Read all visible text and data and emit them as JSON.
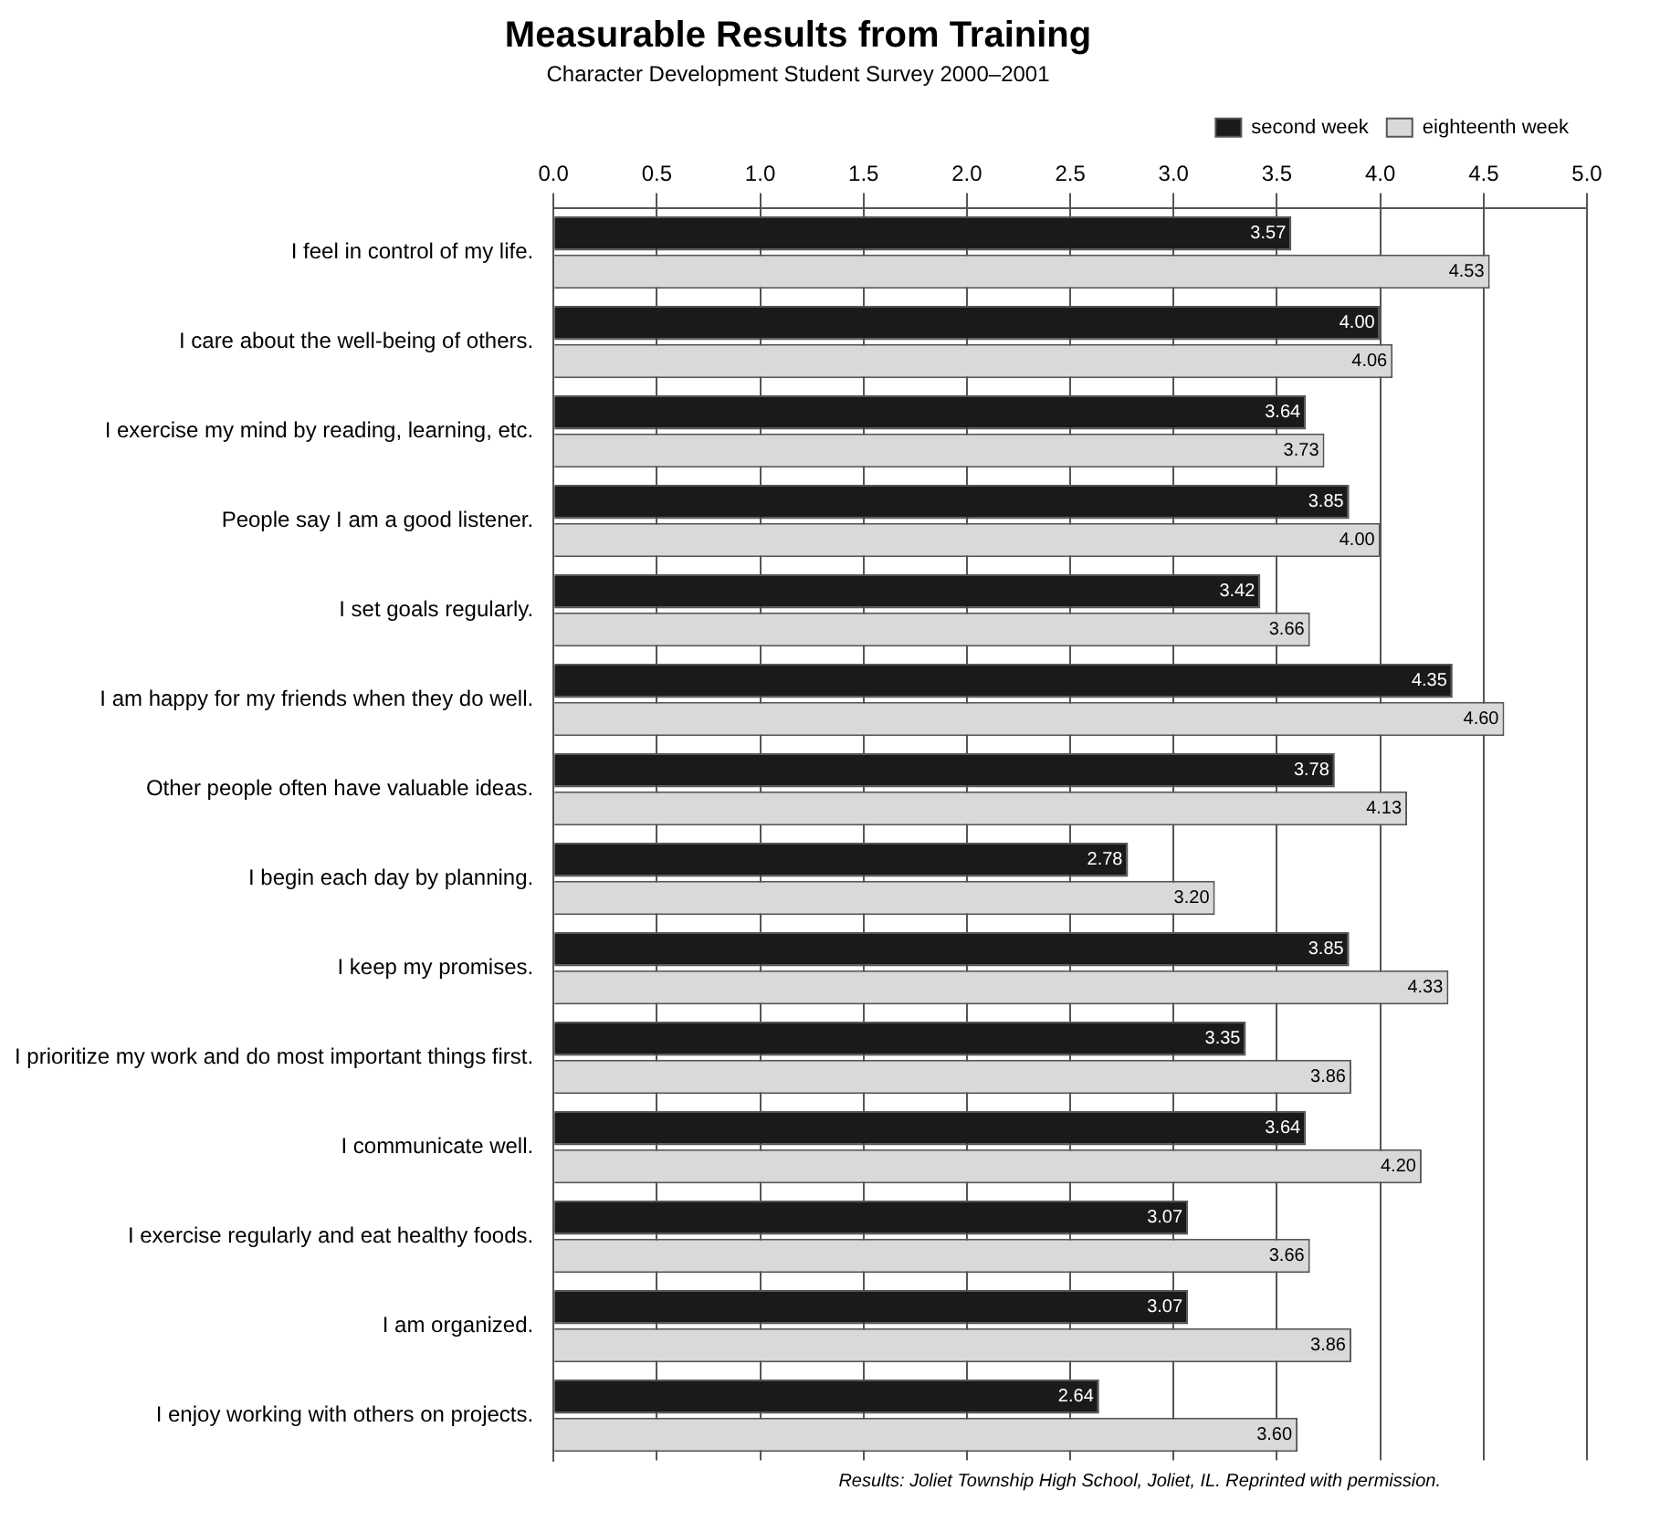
{
  "chart_data": {
    "type": "bar",
    "orientation": "horizontal",
    "title": "Measurable Results from Training",
    "subtitle": "Character Development Student Survey 2000–2001",
    "categories": [
      "I feel in control of my life.",
      "I care about the well-being of others.",
      "I exercise my mind by reading, learning, etc.",
      "People say I am a good listener.",
      "I set goals regularly.",
      "I am happy for my friends when they do well.",
      "Other people often have valuable ideas.",
      "I begin each day by planning.",
      "I keep my promises.",
      "I prioritize my work and do most important things first.",
      "I communicate well.",
      "I exercise regularly and eat healthy foods.",
      "I am organized.",
      "I enjoy working with others on projects."
    ],
    "series": [
      {
        "name": "second week",
        "color": "#1a1a1a",
        "values": [
          3.57,
          4.0,
          3.64,
          3.85,
          3.42,
          4.35,
          3.78,
          2.78,
          3.85,
          3.35,
          3.64,
          3.07,
          3.07,
          2.64
        ],
        "value_labels": [
          "3.57",
          "4.00",
          "3.64",
          "3.85",
          "3.42",
          "4.35",
          "3.78",
          "2.78",
          "3.85",
          "3.35",
          "3.64",
          "3.07",
          "3.07",
          "2.64"
        ]
      },
      {
        "name": "eighteenth week",
        "color": "#d9d9d9",
        "values": [
          4.53,
          4.06,
          3.73,
          4.0,
          3.66,
          4.6,
          4.13,
          3.2,
          4.33,
          3.86,
          4.2,
          3.66,
          3.86,
          3.6
        ],
        "value_labels": [
          "4.53",
          "4.06",
          "3.73",
          "4.00",
          "3.66",
          "4.60",
          "4.13",
          "3.20",
          "4.33",
          "3.86",
          "4.20",
          "3.66",
          "3.86",
          "3.60"
        ]
      }
    ],
    "xlim": [
      0,
      5
    ],
    "xticks": [
      {
        "value": 0,
        "label": "0.0"
      },
      {
        "value": 0.5,
        "label": "0.5"
      },
      {
        "value": 1,
        "label": "1.0"
      },
      {
        "value": 1.5,
        "label": "1.5"
      },
      {
        "value": 2,
        "label": "2.0"
      },
      {
        "value": 2.5,
        "label": "2.5"
      },
      {
        "value": 3,
        "label": "3.0"
      },
      {
        "value": 3.5,
        "label": "3.5"
      },
      {
        "value": 4,
        "label": "4.0"
      },
      {
        "value": 4.5,
        "label": "4.5"
      },
      {
        "value": 5,
        "label": "5.0"
      }
    ],
    "grid": "x",
    "legend": "top right",
    "annotations": [
      "Results: Joliet Township High School, Joliet, IL. Reprinted with permission."
    ]
  }
}
